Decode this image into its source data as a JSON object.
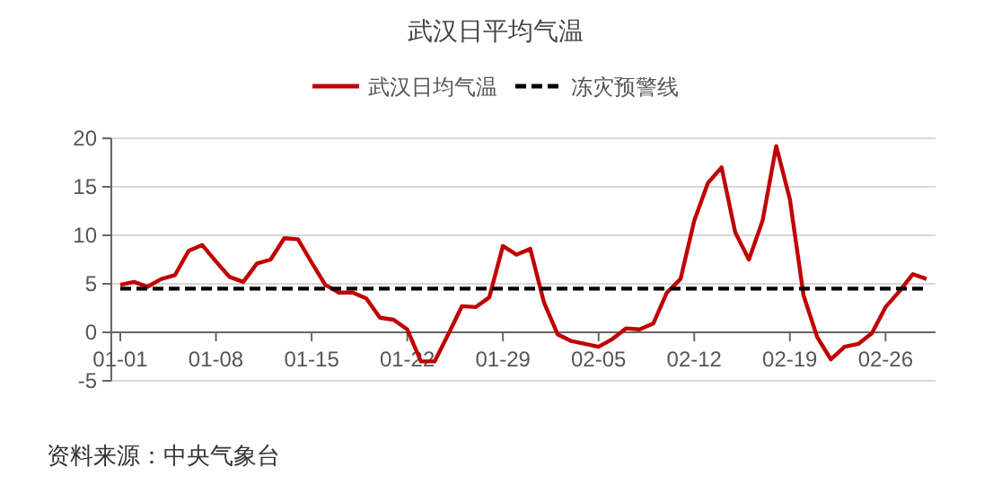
{
  "chart_data": {
    "type": "line",
    "title": "武汉日平均气温",
    "categories": [
      "01-01",
      null,
      null,
      null,
      null,
      null,
      null,
      "01-08",
      null,
      null,
      null,
      null,
      null,
      null,
      "01-15",
      null,
      null,
      null,
      null,
      null,
      null,
      "01-22",
      null,
      null,
      null,
      null,
      null,
      null,
      "01-29",
      null,
      null,
      null,
      null,
      null,
      null,
      "02-05",
      null,
      null,
      null,
      null,
      null,
      null,
      "02-12",
      null,
      null,
      null,
      null,
      null,
      null,
      "02-19",
      null,
      null,
      null,
      null,
      null,
      null,
      "02-26",
      null,
      null,
      null
    ],
    "series": [
      {
        "name": "武汉日均气温",
        "color": "#c00000",
        "line_style": "solid",
        "values": [
          4.9,
          5.2,
          4.7,
          5.5,
          5.9,
          8.4,
          9.0,
          7.3,
          5.7,
          5.2,
          7.1,
          7.5,
          9.7,
          9.6,
          7.2,
          4.9,
          4.1,
          4.1,
          3.5,
          1.5,
          1.3,
          0.3,
          -3.0,
          -3.0,
          -0.2,
          2.7,
          2.6,
          3.6,
          8.9,
          8.0,
          8.6,
          3.1,
          -0.2,
          -0.9,
          -1.2,
          -1.5,
          -0.7,
          0.4,
          0.3,
          0.9,
          4.1,
          5.5,
          11.5,
          15.4,
          17.0,
          10.3,
          7.5,
          11.5,
          19.2,
          13.7,
          3.8,
          -0.5,
          -2.8,
          -1.5,
          -1.2,
          -0.1,
          2.6,
          4.2,
          6.0,
          5.5
        ]
      },
      {
        "name": "冻灾预警线",
        "color": "#000000",
        "line_style": "dashed",
        "values": [
          4.5,
          4.5,
          4.5,
          4.5,
          4.5,
          4.5,
          4.5,
          4.5,
          4.5,
          4.5,
          4.5,
          4.5,
          4.5,
          4.5,
          4.5,
          4.5,
          4.5,
          4.5,
          4.5,
          4.5,
          4.5,
          4.5,
          4.5,
          4.5,
          4.5,
          4.5,
          4.5,
          4.5,
          4.5,
          4.5,
          4.5,
          4.5,
          4.5,
          4.5,
          4.5,
          4.5,
          4.5,
          4.5,
          4.5,
          4.5,
          4.5,
          4.5,
          4.5,
          4.5,
          4.5,
          4.5,
          4.5,
          4.5,
          4.5,
          4.5,
          4.5,
          4.5,
          4.5,
          4.5,
          4.5,
          4.5,
          4.5,
          4.5,
          4.5,
          4.5
        ]
      }
    ],
    "ylim": [
      -5,
      20
    ],
    "yticks": [
      -5,
      0,
      5,
      10,
      15,
      20
    ],
    "grid": "y",
    "legend": "top",
    "marker": "none",
    "annotations": [
      "资料来源：中央气象台"
    ]
  }
}
